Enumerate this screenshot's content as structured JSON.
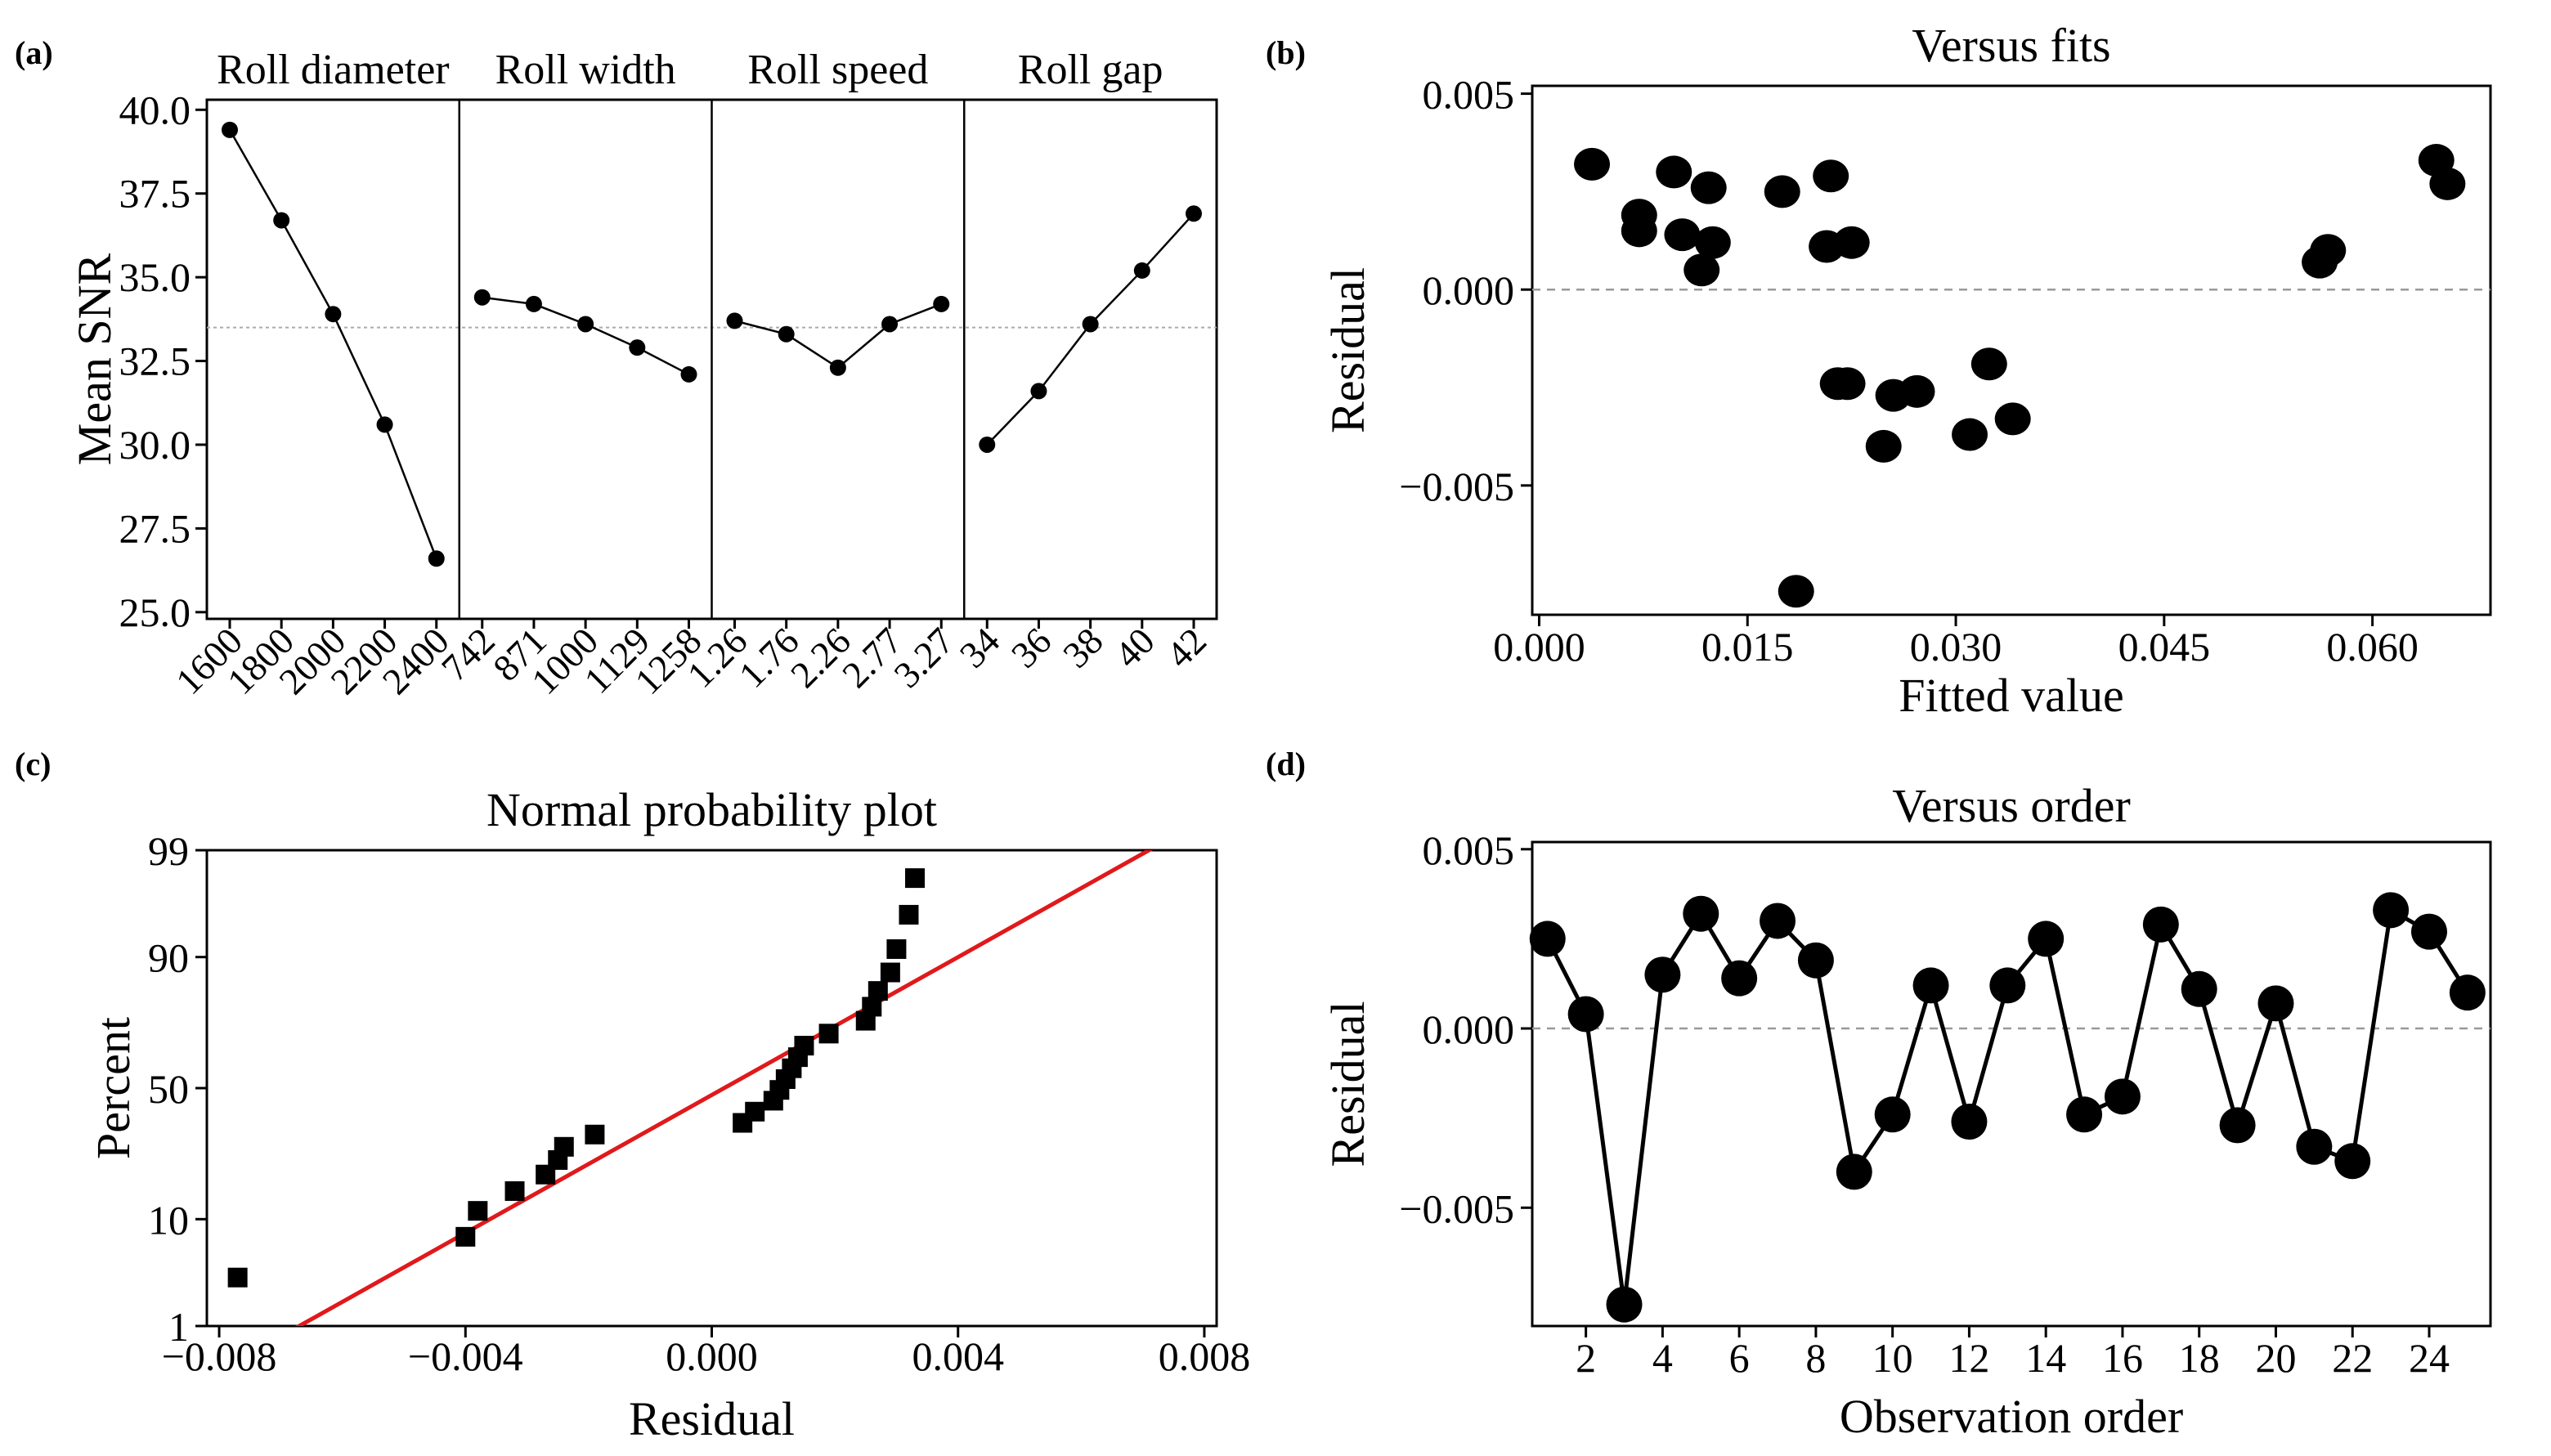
{
  "chart_data": [
    {
      "panel": "(a)",
      "type": "line",
      "ylabel": "Mean SNR",
      "ylim": [
        24.8,
        40.3
      ],
      "yticks": [
        "25.0",
        "27.5",
        "30.0",
        "32.5",
        "35.0",
        "37.5",
        "40.0"
      ],
      "mean_line": 33.5,
      "factors": [
        {
          "name": "Roll diameter",
          "levels": [
            "1600",
            "1800",
            "2000",
            "2200",
            "2400"
          ],
          "values": [
            39.4,
            36.7,
            33.9,
            30.6,
            26.6
          ]
        },
        {
          "name": "Roll width",
          "levels": [
            "742",
            "871",
            "1000",
            "1129",
            "1258"
          ],
          "values": [
            34.4,
            34.2,
            33.6,
            32.9,
            32.1
          ]
        },
        {
          "name": "Roll speed",
          "levels": [
            "1.26",
            "1.76",
            "2.26",
            "2.77",
            "3.27"
          ],
          "values": [
            33.7,
            33.3,
            32.3,
            33.6,
            34.2
          ]
        },
        {
          "name": "Roll gap",
          "levels": [
            "34",
            "36",
            "38",
            "40",
            "42"
          ],
          "values": [
            30.0,
            31.6,
            33.6,
            35.2,
            36.9
          ]
        }
      ]
    },
    {
      "panel": "(b)",
      "type": "scatter",
      "title": "Versus fits",
      "xlabel": "Fitted value",
      "ylabel": "Residual",
      "xlim": [
        -0.0005,
        0.0685
      ],
      "ylim": [
        -0.0083,
        0.0052
      ],
      "xticks": [
        "0.000",
        "0.015",
        "0.030",
        "0.045",
        "0.060"
      ],
      "yticks": [
        "0.005",
        "0.000",
        "−0.005"
      ],
      "points": [
        [
          0.0038,
          0.0032
        ],
        [
          0.0072,
          0.0019
        ],
        [
          0.0072,
          0.0015
        ],
        [
          0.0097,
          0.003
        ],
        [
          0.0103,
          0.0014
        ],
        [
          0.0117,
          0.0005
        ],
        [
          0.0122,
          0.0026
        ],
        [
          0.0125,
          0.0012
        ],
        [
          0.0175,
          0.0025
        ],
        [
          0.0185,
          -0.0077
        ],
        [
          0.0207,
          0.0011
        ],
        [
          0.021,
          0.0029
        ],
        [
          0.0215,
          -0.0024
        ],
        [
          0.0222,
          -0.0024
        ],
        [
          0.0225,
          0.0012
        ],
        [
          0.0248,
          -0.004
        ],
        [
          0.0255,
          -0.0027
        ],
        [
          0.0272,
          -0.0026
        ],
        [
          0.031,
          -0.0037
        ],
        [
          0.0324,
          -0.0019
        ],
        [
          0.0341,
          -0.0033
        ],
        [
          0.0562,
          0.0007
        ],
        [
          0.0568,
          0.001
        ],
        [
          0.0646,
          0.0033
        ],
        [
          0.0654,
          0.0027
        ]
      ]
    },
    {
      "panel": "(c)",
      "type": "scatter",
      "title": "Normal probability plot",
      "xlabel": "Residual",
      "ylabel": "Percent",
      "xlim": [
        -0.0082,
        0.0082
      ],
      "xticks": [
        "−0.008",
        "−0.004",
        "0.000",
        "0.004",
        "0.008"
      ],
      "yticks": [
        "1",
        "10",
        "50",
        "90",
        "99"
      ],
      "fit_line": {
        "from": [
          -0.0067,
          1.0
        ],
        "to": [
          0.0071,
          99.0
        ],
        "color": "#e0191b"
      },
      "points": [
        [
          -0.0077,
          3.2
        ],
        [
          -0.004,
          7.3
        ],
        [
          -0.0038,
          11.5
        ],
        [
          -0.0032,
          15.7
        ],
        [
          -0.0027,
          19.9
        ],
        [
          -0.0025,
          24.1
        ],
        [
          -0.0024,
          28.3
        ],
        [
          -0.0019,
          32.5
        ],
        [
          0.0005,
          36.7
        ],
        [
          0.0007,
          40.9
        ],
        [
          0.001,
          45.1
        ],
        [
          0.0011,
          49.3
        ],
        [
          0.0012,
          53.5
        ],
        [
          0.0013,
          57.7
        ],
        [
          0.0014,
          61.9
        ],
        [
          0.0015,
          66.1
        ],
        [
          0.0019,
          70.3
        ],
        [
          0.0025,
          74.5
        ],
        [
          0.0026,
          78.7
        ],
        [
          0.0027,
          82.9
        ],
        [
          0.0029,
          87.1
        ],
        [
          0.003,
          91.3
        ],
        [
          0.0032,
          95.5
        ],
        [
          0.0033,
          98.0
        ]
      ]
    },
    {
      "panel": "(d)",
      "type": "line",
      "title": "Versus order",
      "xlabel": "Observation order",
      "ylabel": "Residual",
      "xlim": [
        0.6,
        25.6
      ],
      "ylim": [
        -0.0083,
        0.0052
      ],
      "xticks": [
        "2",
        "4",
        "6",
        "8",
        "10",
        "12",
        "14",
        "16",
        "18",
        "20",
        "22",
        "24"
      ],
      "yticks": [
        "0.005",
        "0.000",
        "−0.005"
      ],
      "x": [
        1,
        2,
        3,
        4,
        5,
        6,
        7,
        8,
        9,
        10,
        11,
        12,
        13,
        14,
        15,
        16,
        17,
        18,
        19,
        20,
        21,
        22,
        23,
        24,
        25
      ],
      "values": [
        0.0025,
        0.0004,
        -0.0077,
        0.0015,
        0.0032,
        0.0014,
        0.003,
        0.0019,
        -0.004,
        -0.0024,
        0.0012,
        -0.0026,
        0.0012,
        0.0025,
        -0.0024,
        -0.0019,
        0.0029,
        0.0011,
        -0.0027,
        0.0007,
        -0.0033,
        -0.0037,
        0.0033,
        0.0027,
        0.001
      ]
    }
  ]
}
